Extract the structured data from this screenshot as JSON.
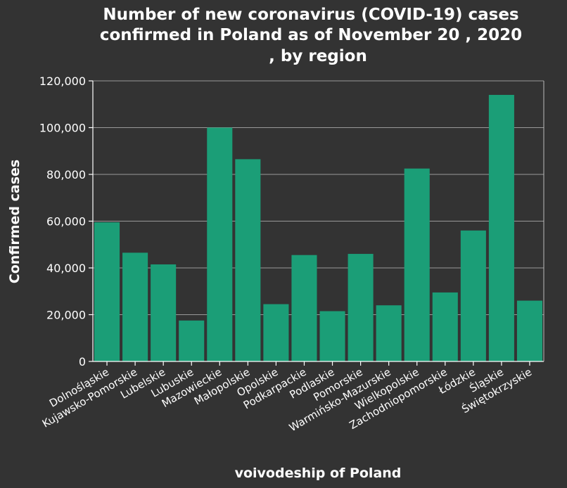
{
  "chart_data": {
    "type": "bar",
    "title_lines": [
      "Number of new coronavirus (COVID-19) cases",
      "confirmed in Poland as of November 20 , 2020",
      ", by region"
    ],
    "xlabel": "voivodeship of Poland",
    "ylabel": "Confirmed cases",
    "ylim": [
      0,
      120000
    ],
    "yticks": [
      0,
      20000,
      40000,
      60000,
      80000,
      100000,
      120000
    ],
    "ytick_labels": [
      "0",
      "20,000",
      "40,000",
      "60,000",
      "80,000",
      "100,000",
      "120,000"
    ],
    "grid": true,
    "categories": [
      "Dolnośląskie",
      "Kujawsko-Pomorskie",
      "Lubelskie",
      "Lubuskie",
      "Mazowieckie",
      "Małopolskie",
      "Opolskie",
      "Podkarpackie",
      "Podlaskie",
      "Pomorskie",
      "Warmińsko-Mazurskie",
      "Wielkopolskie",
      "Zachodniopomorskie",
      "Łódzkie",
      "Śląskie",
      "Świętokrzyskie"
    ],
    "values": [
      59500,
      46500,
      41500,
      17500,
      100000,
      86500,
      24500,
      45500,
      21500,
      46000,
      24000,
      82500,
      29500,
      56000,
      114000,
      26000
    ],
    "bar_color": "#1b9e77",
    "background_color": "#333333",
    "grid_color": "#999999"
  }
}
